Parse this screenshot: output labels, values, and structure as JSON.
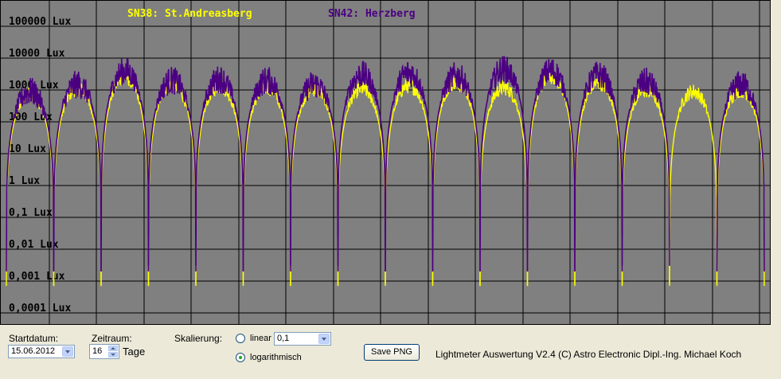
{
  "chart_data": {
    "type": "line",
    "scale": "log",
    "y_tick_labels": [
      "100000 Lux",
      "10000 Lux",
      "1000 Lux",
      "100 Lux",
      "10 Lux",
      "1 Lux",
      "0,1 Lux",
      "0,01 Lux",
      "0,001 Lux",
      "0,0001 Lux"
    ],
    "y_tick_values": [
      100000,
      10000,
      1000,
      100,
      10,
      1,
      0.1,
      0.01,
      0.001,
      0.0001
    ],
    "ylim": [
      3e-05,
      200000
    ],
    "days": 16,
    "grid": true,
    "background": "#808080",
    "series": [
      {
        "name": "SN38: St.Andreasberg",
        "color": "#ffff00",
        "day_max_lux": [
          700,
          1100,
          2500,
          1500,
          1300,
          1200,
          1100,
          1100,
          1400,
          1800,
          1200,
          2600,
          1700,
          1000,
          900,
          1000
        ],
        "night_min_lux": [
          0.0007,
          0.0007,
          0.0007,
          0.0007,
          0.0008,
          0.0007,
          0.0007,
          0.0007,
          0.0008,
          0.0007,
          0.0007,
          0.0007,
          0.0008,
          0.0007,
          0.0008,
          0.0007
        ]
      },
      {
        "name": "SN42: Herzberg",
        "color": "#4b0082",
        "day_max_lux": [
          900,
          1500,
          4000,
          2000,
          2200,
          2000,
          1500,
          3000,
          3500,
          2800,
          4500,
          4000,
          3000,
          1800,
          null,
          1500
        ],
        "night_min_lux": [
          0.002,
          0.002,
          0.002,
          0.003,
          0.002,
          0.002,
          0.003,
          0.002,
          0.002,
          0.002,
          0.002,
          0.002,
          0.002,
          0.003,
          null,
          0.002
        ]
      }
    ]
  },
  "controls": {
    "startdatum_label": "Startdatum:",
    "startdatum_value": "15.06.2012",
    "zeitraum_label": "Zeitraum:",
    "zeitraum_value": "16",
    "zeitraum_unit": "Tage",
    "skalierung_label": "Skalierung:",
    "linear_label": "linear",
    "linear_value": "0,1",
    "log_label": "logarithmisch",
    "log_selected": true,
    "save_button": "Save PNG",
    "footer": "Lightmeter Auswertung V2.4  (C) Astro Electronic Dipl.-Ing. Michael Koch"
  }
}
